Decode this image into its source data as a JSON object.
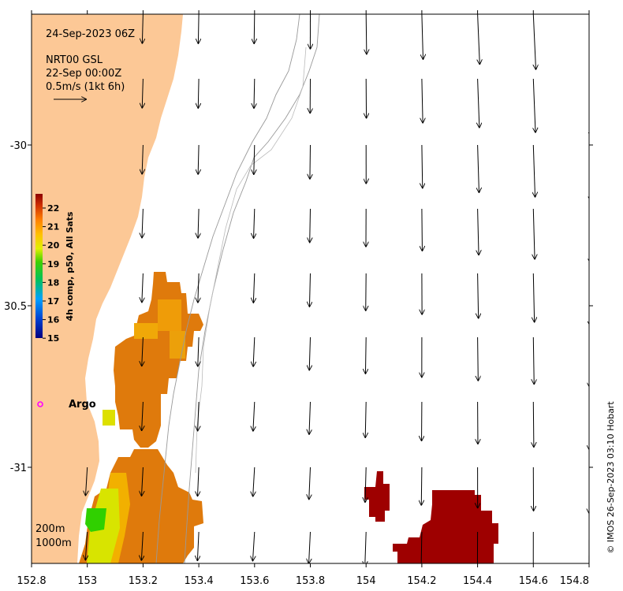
{
  "info": {
    "timestamp": "24-Sep-2023 06Z",
    "model": "NRT00 GSL",
    "current_date": "22-Sep 00:00Z",
    "arrow_scale": "0.5m/s (1kt 6h)"
  },
  "colorbar": {
    "label": "4h comp, p50, All Sats",
    "ticks": [
      "22",
      "21",
      "20",
      "19",
      "18",
      "17",
      "16",
      "15"
    ],
    "range": [
      15,
      22.5
    ]
  },
  "marker": {
    "label": "Argo",
    "color": "#ff00ff"
  },
  "contours": {
    "label_200": "200m",
    "label_1000": "1000m"
  },
  "credit": "© IMOS 26-Sep-2023 03:10 Hobart",
  "axes": {
    "x_ticks": [
      "152.8",
      "153",
      "153.2",
      "153.4",
      "153.6",
      "153.8",
      "154",
      "154.2",
      "154.4",
      "154.6",
      "154.8"
    ],
    "y_ticks": [
      "-30",
      "30.5",
      "-31"
    ],
    "xlim": [
      152.8,
      154.8
    ],
    "ylim": [
      -31.3,
      -29.6
    ]
  },
  "colors": {
    "land": "#fcc896",
    "sst_warm": "#df7a0c",
    "sst_hot": "#9e0000"
  }
}
